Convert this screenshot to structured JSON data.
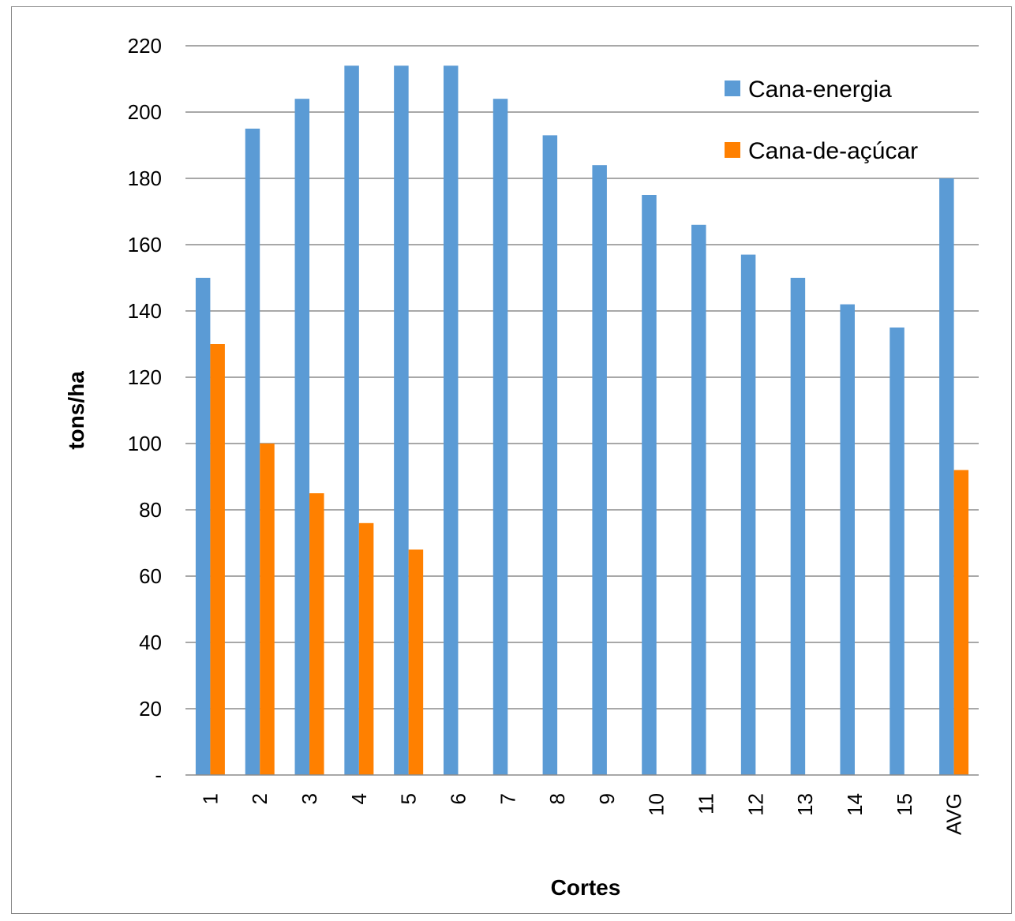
{
  "chart_data": {
    "type": "bar",
    "title": "",
    "xlabel": "Cortes",
    "ylabel": "tons/ha",
    "ylim": [
      0,
      220
    ],
    "ytick_step": 20,
    "ytick_zero_label": "-",
    "grid": true,
    "legend_position": "top-right",
    "categories": [
      "1",
      "2",
      "3",
      "4",
      "5",
      "6",
      "7",
      "8",
      "9",
      "10",
      "11",
      "12",
      "13",
      "14",
      "15",
      "AVG"
    ],
    "series": [
      {
        "name": "Cana-energia",
        "color": "#5b9bd5",
        "values": [
          150,
          195,
          204,
          214,
          214,
          214,
          204,
          193,
          184,
          175,
          166,
          157,
          150,
          142,
          135,
          180
        ]
      },
      {
        "name": "Cana-de-açúcar",
        "color": "#ff8000",
        "values": [
          130,
          100,
          85,
          76,
          68,
          null,
          null,
          null,
          null,
          null,
          null,
          null,
          null,
          null,
          null,
          92
        ]
      }
    ]
  }
}
